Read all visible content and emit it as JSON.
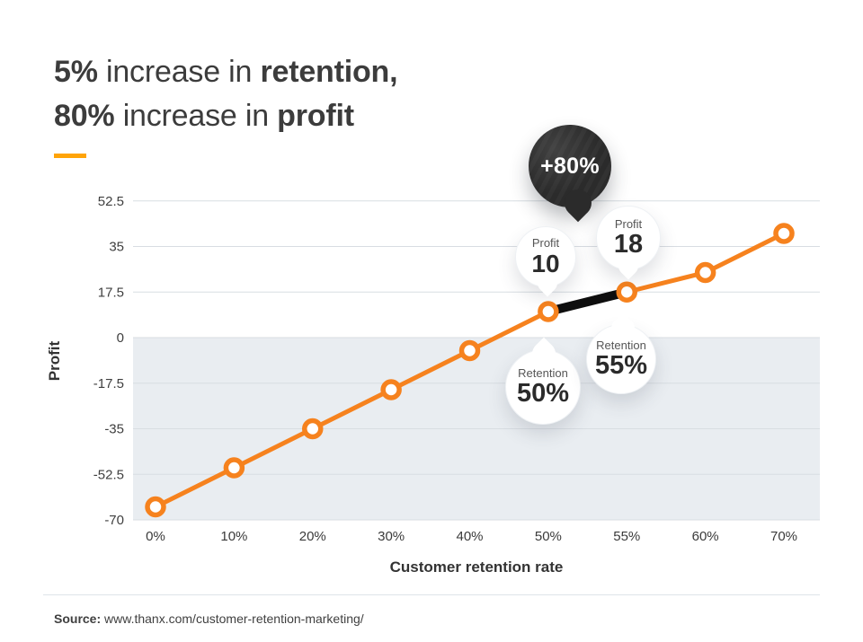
{
  "header": {
    "title": {
      "line1": [
        {
          "text": "5%",
          "bold": true
        },
        {
          "text": " increase in ",
          "bold": false
        },
        {
          "text": "retention,",
          "bold": true
        }
      ],
      "line2": [
        {
          "text": "80%",
          "bold": true
        },
        {
          "text": " increase in ",
          "bold": false
        },
        {
          "text": "profit",
          "bold": true
        }
      ]
    },
    "accent_color": "#FFA408"
  },
  "chart_data": {
    "type": "line",
    "categories": [
      "0%",
      "10%",
      "20%",
      "30%",
      "40%",
      "50%",
      "55%",
      "60%",
      "70%"
    ],
    "values": [
      -65,
      -50,
      -35,
      -20,
      -5,
      10,
      17.5,
      25,
      40
    ],
    "xlabel": "Customer retention rate",
    "ylabel": "Profit",
    "yticks": [
      52.5,
      35,
      17.5,
      0,
      -17.5,
      -35,
      -52.5,
      -70
    ],
    "ytick_labels": [
      "52.5",
      "35",
      "17.5",
      "0",
      "-17.5",
      "-35",
      "-52.5",
      "-70"
    ],
    "ylim": [
      -70,
      52.5
    ],
    "grid": true,
    "legend": false,
    "line_color": "#F6821E",
    "marker_style": "open-circle-white",
    "gridline_color": "#D8DDE2",
    "shaded_region": {
      "below_value": 0,
      "color": "#E9EDF1"
    },
    "highlight_segment": {
      "from_index": 5,
      "to_index": 6,
      "color": "#0E0E0E"
    },
    "annotations": [
      {
        "id": "pin-80",
        "text": "+80%",
        "style": "dark-pin",
        "color": "#2B2B2B",
        "text_color": "#FFFFFF"
      },
      {
        "id": "profit-10",
        "label": "Profit",
        "value": "10",
        "anchor_category": "50%",
        "position": "above"
      },
      {
        "id": "profit-18",
        "label": "Profit",
        "value": "18",
        "anchor_category": "55%",
        "position": "above"
      },
      {
        "id": "retention-50",
        "label": "Retention",
        "value": "50%",
        "anchor_category": "50%",
        "position": "below"
      },
      {
        "id": "retention-55",
        "label": "Retention",
        "value": "55%",
        "anchor_category": "55%",
        "position": "below"
      }
    ]
  },
  "footer": {
    "source_label": "Source:",
    "source_text": "www.thanx.com/customer-retention-marketing/"
  }
}
